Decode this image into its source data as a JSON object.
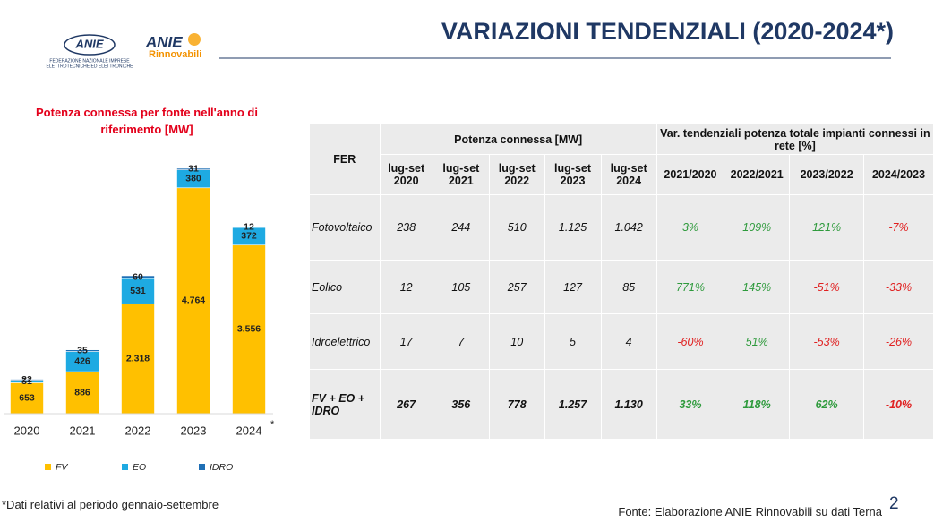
{
  "header": {
    "title": "VARIAZIONI TENDENZIALI (2020-2024*)",
    "logo1": {
      "mark": "ANIE",
      "sub1": "FEDERAZIONE NAZIONALE IMPRESE",
      "sub2": "ELETTROTECNICHE ED ELETTRONICHE"
    },
    "logo2": {
      "mark": "ANIE",
      "sub": "Rinnovabili"
    }
  },
  "chart_data": {
    "type": "stacked-bar",
    "title": "Potenza connessa per fonte nell'anno di riferimento [MW]",
    "categories": [
      "2020",
      "2021",
      "2022",
      "2023",
      "2024"
    ],
    "category_note": "*",
    "series": [
      {
        "name": "FV",
        "color": "#ffc000",
        "values": [
          653,
          886,
          2318,
          4764,
          3556
        ],
        "value_labels": [
          "653",
          "886",
          "2.318",
          "4.764",
          "3.556"
        ]
      },
      {
        "name": "EO",
        "color": "#1eaae2",
        "values": [
          51,
          426,
          531,
          380,
          372
        ]
      },
      {
        "name": "IDRO",
        "color": "#1f6fb5",
        "values": [
          22,
          35,
          60,
          31,
          12
        ]
      }
    ]
  },
  "table": {
    "fer": "FER",
    "group1": "Potenza connessa [MW]",
    "group2": "Var. tendenziali potenza totale impianti connessi in rete [%]",
    "columns": [
      "lug-set 2020",
      "lug-set 2021",
      "lug-set 2022",
      "lug-set 2023",
      "lug-set 2024",
      "2021/2020",
      "2022/2021",
      "2023/2022",
      "2024/2023"
    ],
    "rows": [
      {
        "label": "Fotovoltaico",
        "cells": [
          "238",
          "244",
          "510",
          "1.125",
          "1.042",
          "3%",
          "109%",
          "121%",
          "-7%"
        ]
      },
      {
        "label": "Eolico",
        "cells": [
          "12",
          "105",
          "257",
          "127",
          "85",
          "771%",
          "145%",
          "-51%",
          "-33%"
        ]
      },
      {
        "label": "Idroelettrico",
        "cells": [
          "17",
          "7",
          "10",
          "5",
          "4",
          "-60%",
          "51%",
          "-53%",
          "-26%"
        ]
      },
      {
        "label": "FV + EO + IDRO",
        "cells": [
          "267",
          "356",
          "778",
          "1.257",
          "1.130",
          "33%",
          "118%",
          "62%",
          "-10%"
        ]
      }
    ]
  },
  "footnote": "*Dati relativi al periodo gennaio-settembre",
  "source": "Fonte: Elaborazione ANIE Rinnovabili su dati Terna",
  "page": "2"
}
